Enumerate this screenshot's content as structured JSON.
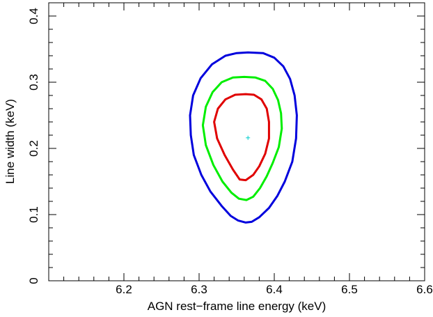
{
  "chart_data": {
    "type": "line",
    "title": "",
    "xlabel": "AGN rest−frame line energy (keV)",
    "ylabel": "Line width (keV)",
    "xlim": [
      6.1,
      6.6
    ],
    "ylim": [
      0,
      0.42
    ],
    "x_ticks": [
      "6.2",
      "6.3",
      "6.4",
      "6.5",
      "6.6"
    ],
    "y_ticks": [
      "0",
      "0.1",
      "0.2",
      "0.3",
      "0.4"
    ],
    "grid": false,
    "colors": {
      "inner": "#e00000",
      "middle": "#00ee00",
      "outer": "#0000dd",
      "best_fit": "#00cccc"
    },
    "best_fit": {
      "x": 6.365,
      "y": 0.216
    },
    "series": [
      {
        "color": "#0000dd",
        "points": [
          [
            6.365,
            0.345
          ],
          [
            6.385,
            0.344
          ],
          [
            6.4,
            0.337
          ],
          [
            6.412,
            0.324
          ],
          [
            6.421,
            0.305
          ],
          [
            6.427,
            0.28
          ],
          [
            6.43,
            0.25
          ],
          [
            6.429,
            0.215
          ],
          [
            6.424,
            0.18
          ],
          [
            6.414,
            0.15
          ],
          [
            6.404,
            0.128
          ],
          [
            6.393,
            0.11
          ],
          [
            6.38,
            0.096
          ],
          [
            6.37,
            0.089
          ],
          [
            6.362,
            0.088
          ],
          [
            6.352,
            0.091
          ],
          [
            6.342,
            0.098
          ],
          [
            6.33,
            0.113
          ],
          [
            6.315,
            0.135
          ],
          [
            6.303,
            0.16
          ],
          [
            6.293,
            0.19
          ],
          [
            6.289,
            0.22
          ],
          [
            6.288,
            0.25
          ],
          [
            6.292,
            0.28
          ],
          [
            6.302,
            0.306
          ],
          [
            6.317,
            0.327
          ],
          [
            6.335,
            0.34
          ],
          [
            6.35,
            0.344
          ],
          [
            6.365,
            0.345
          ]
        ]
      },
      {
        "color": "#00ee00",
        "points": [
          [
            6.36,
            0.308
          ],
          [
            6.375,
            0.307
          ],
          [
            6.388,
            0.302
          ],
          [
            6.398,
            0.29
          ],
          [
            6.405,
            0.273
          ],
          [
            6.409,
            0.253
          ],
          [
            6.41,
            0.23
          ],
          [
            6.406,
            0.202
          ],
          [
            6.398,
            0.178
          ],
          [
            6.39,
            0.158
          ],
          [
            6.381,
            0.14
          ],
          [
            6.372,
            0.127
          ],
          [
            6.363,
            0.122
          ],
          [
            6.353,
            0.124
          ],
          [
            6.343,
            0.133
          ],
          [
            6.331,
            0.15
          ],
          [
            6.319,
            0.175
          ],
          [
            6.309,
            0.205
          ],
          [
            6.305,
            0.235
          ],
          [
            6.309,
            0.263
          ],
          [
            6.318,
            0.285
          ],
          [
            6.33,
            0.3
          ],
          [
            6.345,
            0.307
          ],
          [
            6.36,
            0.308
          ]
        ]
      },
      {
        "color": "#e00000",
        "points": [
          [
            6.362,
            0.282
          ],
          [
            6.373,
            0.281
          ],
          [
            6.383,
            0.274
          ],
          [
            6.39,
            0.26
          ],
          [
            6.393,
            0.24
          ],
          [
            6.393,
            0.215
          ],
          [
            6.388,
            0.192
          ],
          [
            6.38,
            0.173
          ],
          [
            6.372,
            0.16
          ],
          [
            6.362,
            0.152
          ],
          [
            6.354,
            0.153
          ],
          [
            6.345,
            0.168
          ],
          [
            6.334,
            0.19
          ],
          [
            6.324,
            0.215
          ],
          [
            6.32,
            0.24
          ],
          [
            6.325,
            0.26
          ],
          [
            6.335,
            0.274
          ],
          [
            6.348,
            0.281
          ],
          [
            6.362,
            0.282
          ]
        ]
      }
    ]
  }
}
